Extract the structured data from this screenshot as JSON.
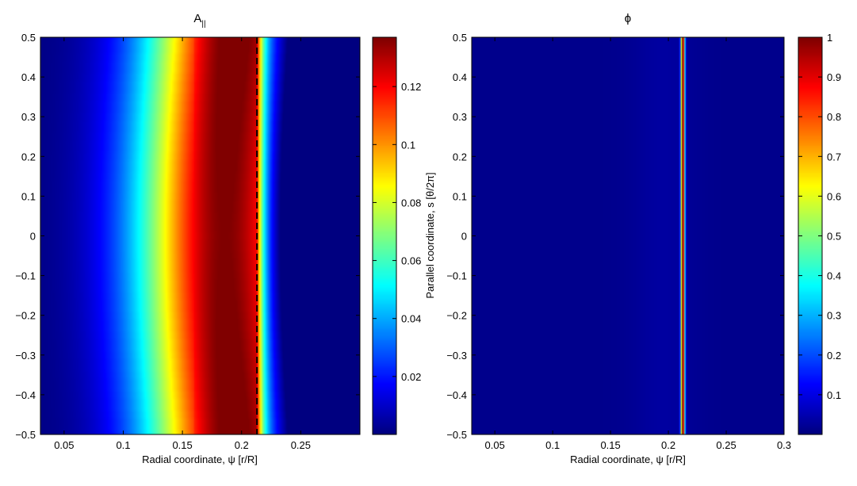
{
  "colors": {
    "dashed_line": "#000000",
    "axis": "#000000",
    "colormap": "jet"
  },
  "chart_data": [
    {
      "type": "heatmap",
      "title": "A",
      "title_subscript": "||",
      "xlabel": "Radial coordinate, ψ [r/R]",
      "ylabel": "Parallel coordinate, s [θ/2π]",
      "xlim": [
        0.03,
        0.3
      ],
      "ylim": [
        -0.5,
        0.5
      ],
      "x_ticks": [
        "0.05",
        "0.1",
        "0.15",
        "0.2",
        "0.25"
      ],
      "y_ticks": [
        "-0.5",
        "-0.4",
        "-0.3",
        "-0.2",
        "-0.1",
        "0",
        "0.1",
        "0.2",
        "0.3",
        "0.4",
        "0.5"
      ],
      "colorbar": {
        "range": [
          0.0,
          0.137
        ],
        "ticks": [
          "0.02",
          "0.04",
          "0.06",
          "0.08",
          "0.1",
          "0.12"
        ]
      },
      "profile": {
        "peak_x": 0.19,
        "peak_value": 0.137,
        "cutoff_x": 0.213,
        "cutoff_drop": 0.095,
        "sag_amplitude_x": 0.008
      },
      "marker_line": {
        "x": 0.213,
        "style": "dashed"
      }
    },
    {
      "type": "heatmap",
      "title": "ϕ",
      "xlabel": "Radial coordinate, ψ [r/R]",
      "ylabel": "Parallel coordinate, s [θ/2π]",
      "xlim": [
        0.03,
        0.3
      ],
      "ylim": [
        -0.5,
        0.5
      ],
      "x_ticks": [
        "0.05",
        "0.1",
        "0.15",
        "0.2",
        "0.25",
        "0.3"
      ],
      "y_ticks": [
        "-0.5",
        "-0.4",
        "-0.3",
        "-0.2",
        "-0.1",
        "0",
        "0.1",
        "0.2",
        "0.3",
        "0.4",
        "0.5"
      ],
      "colorbar": {
        "range": [
          0.0,
          1.0
        ],
        "ticks": [
          "0.1",
          "0.2",
          "0.3",
          "0.4",
          "0.5",
          "0.6",
          "0.7",
          "0.8",
          "0.9",
          "1"
        ]
      },
      "profile": {
        "peak_x": 0.2125,
        "peak_value": 1.0,
        "width_x": 0.0012,
        "background": 0.012
      }
    }
  ]
}
